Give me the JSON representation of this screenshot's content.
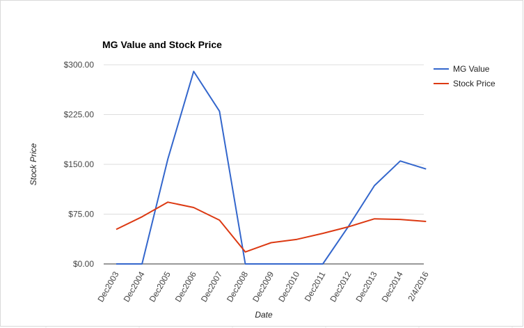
{
  "chart_data": {
    "type": "line",
    "title": "MG Value and Stock Price",
    "xlabel": "Date",
    "ylabel": "Stock Price",
    "categories": [
      "Dec2003",
      "Dec2004",
      "Dec2005",
      "Dec2006",
      "Dec2007",
      "Dec2008",
      "Dec2009",
      "Dec2010",
      "Dec2011",
      "Dec2012",
      "Dec2013",
      "Dec2014",
      "2/4/2016"
    ],
    "yticks": [
      "$0.00",
      "$75.00",
      "$150.00",
      "$225.00",
      "$300.00"
    ],
    "ylim": [
      0,
      300
    ],
    "grid": true,
    "legend_position": "right",
    "series": [
      {
        "name": "MG Value",
        "color": "#3366cc",
        "values": [
          0,
          0,
          158,
          290,
          230,
          0,
          0,
          0,
          0,
          57,
          118,
          155,
          143
        ]
      },
      {
        "name": "Stock Price",
        "color": "#dc3912",
        "values": [
          52,
          71,
          93,
          85,
          66,
          18,
          32,
          37,
          46,
          56,
          68,
          67,
          64
        ]
      }
    ]
  }
}
